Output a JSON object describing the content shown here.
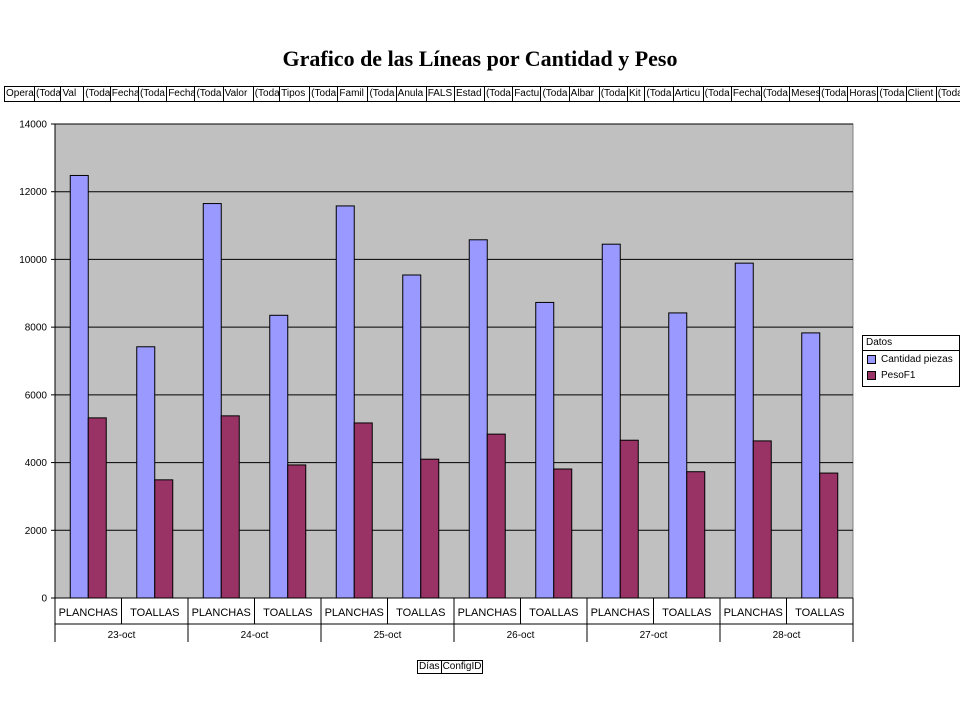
{
  "title": "Grafico de las Líneas por Cantidad y Peso",
  "page_fields": [
    "Opera",
    "(Toda",
    "Val",
    "(Toda",
    "Fecha",
    "(Toda",
    "Fecha",
    "(Toda",
    "Valor",
    "(Toda",
    "Tipos",
    "(Toda",
    "Famil",
    "(Toda",
    "Anula",
    "FALS",
    "Estad",
    "(Toda",
    "Factu",
    "(Toda",
    "Albar",
    "(Toda",
    "Kit",
    "(Toda",
    "Articu",
    "(Toda",
    "Fecha",
    "(Toda",
    "Meses",
    "(Toda",
    "Horas",
    "(Toda",
    "Client",
    "(Toda"
  ],
  "row_fields": [
    "Días",
    "ConfigID"
  ],
  "colors": {
    "plot_bg": "#c0c0c0",
    "series1": "#9999ff",
    "series2": "#993366"
  },
  "chart_data": {
    "type": "bar",
    "groups": [
      "23-oct",
      "24-oct",
      "25-oct",
      "26-oct",
      "27-oct",
      "28-oct"
    ],
    "categories": [
      "PLANCHAS",
      "TOALLAS",
      "PLANCHAS",
      "TOALLAS",
      "PLANCHAS",
      "TOALLAS",
      "PLANCHAS",
      "TOALLAS",
      "PLANCHAS",
      "TOALLAS",
      "PLANCHAS",
      "TOALLAS"
    ],
    "series": [
      {
        "name": "Cantidad piezas",
        "values": [
          12480,
          7420,
          11650,
          8350,
          11580,
          9540,
          10580,
          8730,
          10450,
          8420,
          9890,
          7830
        ]
      },
      {
        "name": "PesoF1",
        "values": [
          5320,
          3490,
          5380,
          3930,
          5170,
          4100,
          4840,
          3810,
          4660,
          3730,
          4640,
          3690
        ]
      }
    ],
    "legend_title": "Datos",
    "legend_position": "right",
    "ylim": [
      0,
      14000
    ],
    "yticks": [
      0,
      2000,
      4000,
      6000,
      8000,
      10000,
      12000,
      14000
    ],
    "grid": true
  }
}
